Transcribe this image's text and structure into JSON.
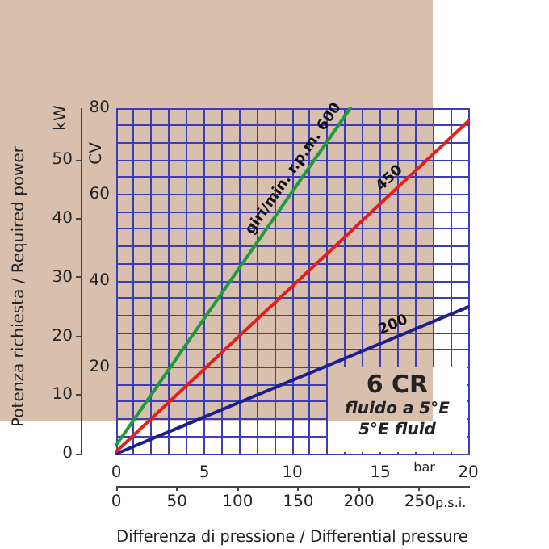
{
  "chart_data": {
    "type": "line",
    "xlabel": "Differenza di pressione / Differential pressure",
    "ylabel": "CV",
    "y2label": "kW",
    "series": [
      {
        "name": "giri/min. r.p.m. 600",
        "color": "#1f9a3c",
        "x": [
          0,
          13.3
        ],
        "values": [
          2,
          80
        ]
      },
      {
        "name": "450",
        "color": "#e3201b",
        "x": [
          0,
          20
        ],
        "values": [
          0.5,
          77
        ]
      },
      {
        "name": "200",
        "color": "#1c1f8c",
        "x": [
          0,
          20
        ],
        "values": [
          0,
          34
        ]
      }
    ],
    "xlim": [
      0,
      20
    ],
    "xticks": [
      0,
      {
        "value": 1,
        "label": null
      },
      {
        "value": 2,
        "label": null
      },
      {
        "value": 3,
        "label": null
      },
      {
        "value": 4,
        "label": null
      },
      5,
      {
        "value": 6,
        "label": null
      },
      {
        "value": 7,
        "label": null
      },
      {
        "value": 8,
        "label": null
      },
      {
        "value": 9,
        "label": null
      },
      10,
      {
        "value": 11,
        "label": null
      },
      {
        "value": 12,
        "label": null
      },
      {
        "value": 13,
        "label": null
      },
      {
        "value": 14,
        "label": null
      },
      15,
      {
        "value": 16,
        "label": null
      },
      {
        "value": 17,
        "label": null
      },
      {
        "value": 18,
        "label": null
      },
      {
        "value": 19,
        "label": null
      },
      20
    ],
    "x2lim": [
      0,
      290
    ],
    "x2ticks": [
      0,
      50,
      100,
      150,
      200,
      250
    ],
    "ylim": [
      0,
      80
    ],
    "yticks": [
      {
        "value": 0,
        "label": null
      },
      {
        "value": 4,
        "label": null
      },
      {
        "value": 8,
        "label": null
      },
      {
        "value": 12,
        "label": null
      },
      {
        "value": 16,
        "label": null
      },
      20,
      {
        "value": 24,
        "label": null
      },
      {
        "value": 28,
        "label": null
      },
      {
        "value": 32,
        "label": null
      },
      {
        "value": 36,
        "label": null
      },
      40,
      {
        "value": 44,
        "label": null
      },
      {
        "value": 48,
        "label": null
      },
      {
        "value": 52,
        "label": null
      },
      {
        "value": 56,
        "label": null
      },
      60,
      {
        "value": 64,
        "label": null
      },
      {
        "value": 68,
        "label": null
      },
      {
        "value": 72,
        "label": null
      },
      {
        "value": 76,
        "label": null
      },
      80
    ],
    "y2lim": [
      0,
      58.8
    ],
    "y2ticks": [
      0,
      10,
      20,
      30,
      40,
      50
    ],
    "grid": true,
    "legend": false,
    "marker": "none",
    "line_style": "solid",
    "annotations": [
      "Potenza richiesta / Required power",
      "6 CR",
      "fluido a 5°E",
      "5°E fluid",
      "bar",
      "p.s.i."
    ]
  }
}
